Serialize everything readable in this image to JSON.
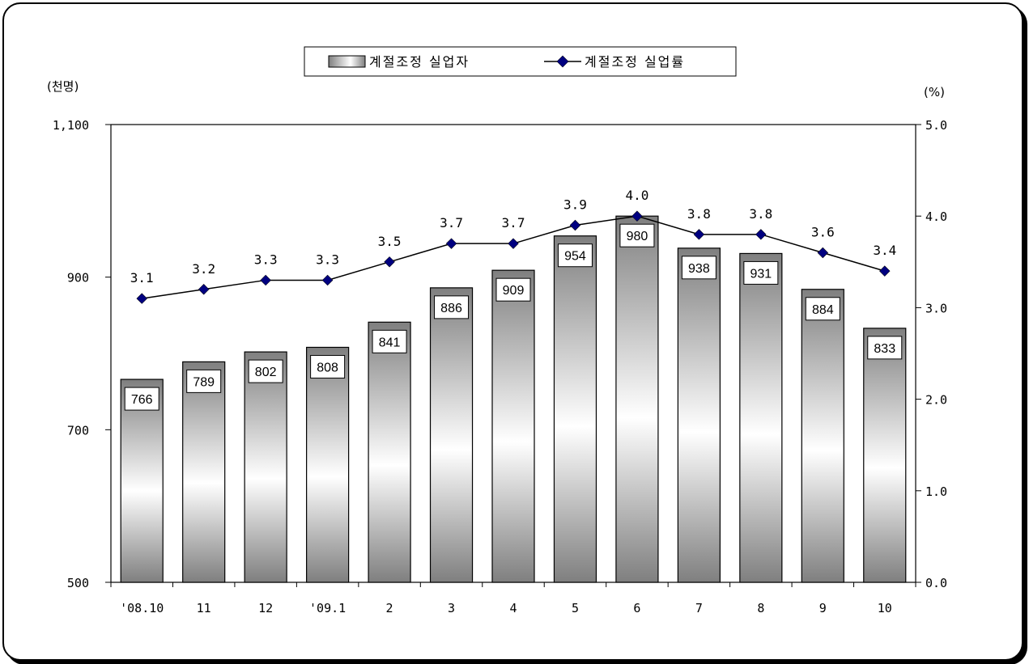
{
  "chart_data": {
    "type": "bar",
    "categories": [
      "'08.10",
      "11",
      "12",
      "'09.1",
      "2",
      "3",
      "4",
      "5",
      "6",
      "7",
      "8",
      "9",
      "10"
    ],
    "series": [
      {
        "name": "계절조정 실업자",
        "type": "bar",
        "axis": "left",
        "values": [
          766,
          789,
          802,
          808,
          841,
          886,
          909,
          954,
          980,
          938,
          931,
          884,
          833
        ],
        "color": "#808080"
      },
      {
        "name": "계절조정 실업률",
        "type": "line",
        "axis": "right",
        "values": [
          3.1,
          3.2,
          3.3,
          3.3,
          3.5,
          3.7,
          3.7,
          3.9,
          4.0,
          3.8,
          3.8,
          3.6,
          3.4
        ],
        "color": "#000080"
      }
    ],
    "left_axis": {
      "unit": "(천명)",
      "ylim": [
        500,
        1100
      ],
      "ticks": [
        500,
        700,
        900,
        1100
      ],
      "tick_labels": [
        "500",
        "700",
        "900",
        "1,100"
      ]
    },
    "right_axis": {
      "unit": "(%)",
      "ylim": [
        0,
        5
      ],
      "ticks": [
        0,
        1,
        2,
        3,
        4,
        5
      ],
      "tick_labels": [
        "0.0",
        "1.0",
        "2.0",
        "3.0",
        "4.0",
        "5.0"
      ]
    },
    "legend": {
      "position": "top-center",
      "entries": [
        "계절조정 실업자",
        "계절조정 실업률"
      ]
    },
    "grid": false
  }
}
